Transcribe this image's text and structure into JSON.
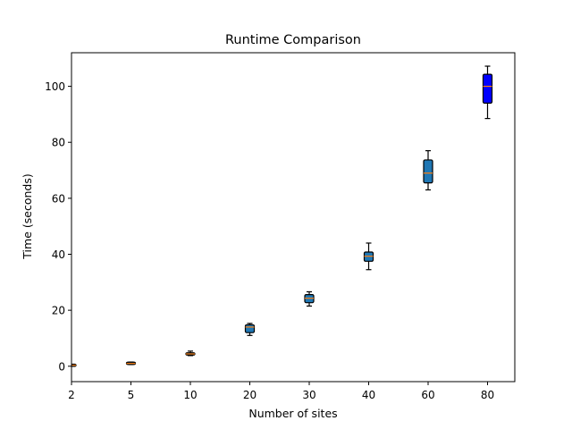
{
  "chart_data": {
    "type": "box",
    "title": "Runtime Comparison",
    "xlabel": "Number of sites",
    "ylabel": "Time (seconds)",
    "categories": [
      "2",
      "5",
      "10",
      "20",
      "30",
      "40",
      "60",
      "80"
    ],
    "yticks": [
      0,
      20,
      40,
      60,
      80,
      100
    ],
    "ylim": [
      -5.5,
      112
    ],
    "grid": false,
    "boxes": [
      {
        "category": "2",
        "whisker_low": 0.1,
        "q1": 0.2,
        "median": 0.35,
        "q3": 0.5,
        "whisker_high": 0.6,
        "color": "#1f77b4"
      },
      {
        "category": "5",
        "whisker_low": 0.6,
        "q1": 0.8,
        "median": 1.0,
        "q3": 1.3,
        "whisker_high": 1.5,
        "color": "#1f77b4"
      },
      {
        "category": "10",
        "whisker_low": 3.8,
        "q1": 4.0,
        "median": 4.4,
        "q3": 4.8,
        "whisker_high": 5.4,
        "color": "#1f77b4"
      },
      {
        "category": "20",
        "whisker_low": 11.0,
        "q1": 12.0,
        "median": 14.0,
        "q3": 14.8,
        "whisker_high": 15.3,
        "color": "#1f77b4"
      },
      {
        "category": "30",
        "whisker_low": 21.5,
        "q1": 22.7,
        "median": 24.3,
        "q3": 25.6,
        "whisker_high": 26.6,
        "color": "#1f77b4"
      },
      {
        "category": "40",
        "whisker_low": 34.5,
        "q1": 37.5,
        "median": 39.3,
        "q3": 40.8,
        "whisker_high": 44.0,
        "color": "#1f77b4"
      },
      {
        "category": "60",
        "whisker_low": 63.0,
        "q1": 65.5,
        "median": 69.0,
        "q3": 73.7,
        "whisker_high": 77.0,
        "color": "#1f77b4"
      },
      {
        "category": "80",
        "whisker_low": 88.5,
        "q1": 94.0,
        "median": 100.0,
        "q3": 104.3,
        "whisker_high": 107.2,
        "color": "#0000ff"
      }
    ],
    "median_color": "#ff7f0e"
  }
}
